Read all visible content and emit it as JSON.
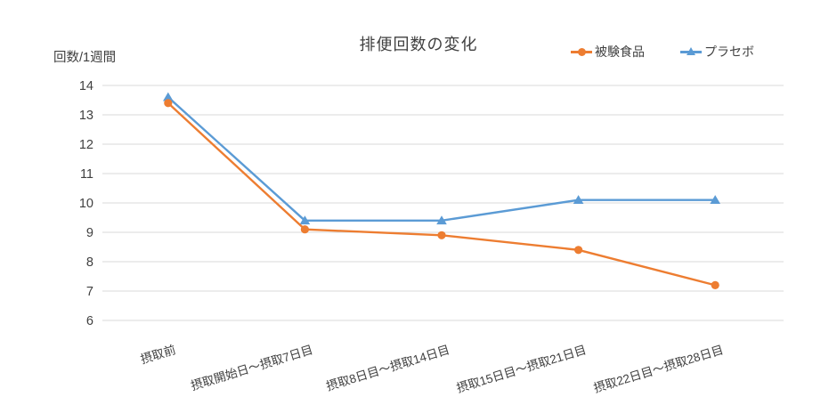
{
  "title": "排便回数の変化",
  "y_axis_unit_label": "回数/1週間",
  "colors": {
    "series_test_food": "#ED7D31",
    "series_placebo": "#5B9BD5",
    "gridline": "#D9D9D9",
    "text": "#404040"
  },
  "chart_data": {
    "type": "line",
    "title": "排便回数の変化",
    "ylabel": "回数/1週間",
    "xlabel": "",
    "categories": [
      "摂取前",
      "摂取開始日〜摂取7日目",
      "摂取8日目〜摂取14日目",
      "摂取15日目〜摂取21日目",
      "摂取22日目〜摂取28日目"
    ],
    "series": [
      {
        "name": "被験食品",
        "color": "#ED7D31",
        "marker": "circle",
        "values": [
          13.4,
          9.1,
          8.9,
          8.4,
          7.2
        ]
      },
      {
        "name": "プラセボ",
        "color": "#5B9BD5",
        "marker": "triangle",
        "values": [
          13.6,
          9.4,
          9.4,
          10.1,
          10.1
        ]
      }
    ],
    "ylim": [
      6,
      14
    ],
    "y_ticks": [
      14,
      13,
      12,
      11,
      10,
      9,
      8,
      7,
      6
    ],
    "grid": true,
    "legend_position": "top-right",
    "x_label_rotation_deg": -17
  }
}
